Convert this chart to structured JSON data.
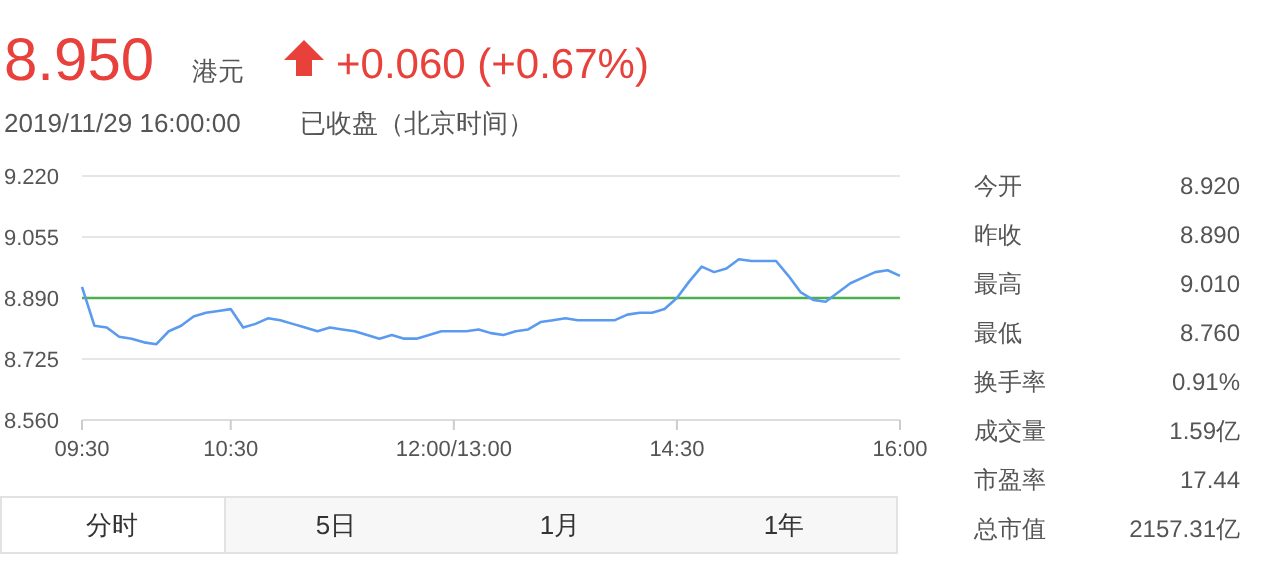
{
  "chart_data": {
    "type": "line",
    "title": "8.950",
    "subtitle": "+0.060 (+0.67%)",
    "annotations": [
      "港元",
      "2019/11/29 16:00:00",
      "已收盘（北京时间）",
      "今开",
      "8.920",
      "昨收",
      "8.890",
      "最高",
      "9.010",
      "最低",
      "8.760",
      "换手率",
      "0.91%",
      "成交量",
      "1.59亿",
      "市盈率",
      "17.44",
      "总市值",
      "2157.31亿",
      "分时",
      "5日",
      "1月",
      "1年"
    ],
    "categories": [
      "09:30",
      null,
      null,
      null,
      null,
      null,
      null,
      null,
      null,
      null,
      null,
      null,
      "10:30",
      null,
      null,
      null,
      null,
      null,
      null,
      null,
      null,
      null,
      null,
      null,
      null,
      null,
      null,
      null,
      null,
      null,
      "12:00/13:00",
      null,
      null,
      null,
      null,
      null,
      null,
      null,
      null,
      null,
      null,
      null,
      null,
      null,
      null,
      null,
      null,
      null,
      "14:30",
      null,
      null,
      null,
      null,
      null,
      null,
      null,
      null,
      null,
      null,
      null,
      null,
      null,
      null,
      null,
      null,
      null,
      "16:00"
    ],
    "series": [
      {
        "color": "#5b9bef",
        "values": [
          8.92,
          8.815,
          8.81,
          8.785,
          8.78,
          8.77,
          8.765,
          8.8,
          8.815,
          8.84,
          8.85,
          8.855,
          8.86,
          8.81,
          8.82,
          8.835,
          8.83,
          8.82,
          8.81,
          8.8,
          8.81,
          8.805,
          8.8,
          8.79,
          8.78,
          8.79,
          8.78,
          8.78,
          8.79,
          8.8,
          8.8,
          8.8,
          8.805,
          8.795,
          8.79,
          8.8,
          8.805,
          8.825,
          8.83,
          8.835,
          8.83,
          8.83,
          8.83,
          8.83,
          8.845,
          8.85,
          8.85,
          8.86,
          8.89,
          8.935,
          8.975,
          8.96,
          8.97,
          8.995,
          8.99,
          8.99,
          8.99,
          8.95,
          8.905,
          8.885,
          8.88,
          8.905,
          8.93,
          8.945,
          8.96,
          8.965,
          8.95
        ]
      }
    ],
    "ylim": [
      8.56,
      9.22
    ],
    "yticks": [
      {
        "value": 8.56,
        "label": "8.560"
      },
      {
        "value": 8.725,
        "label": "8.725"
      },
      {
        "value": 8.89,
        "label": "8.890"
      },
      {
        "value": 9.055,
        "label": "9.055"
      },
      {
        "value": 9.22,
        "label": "9.220"
      }
    ],
    "grid": "y",
    "ref_lines": [
      {
        "axis": "y",
        "value": 8.89,
        "color": "#4caf50"
      }
    ]
  }
}
